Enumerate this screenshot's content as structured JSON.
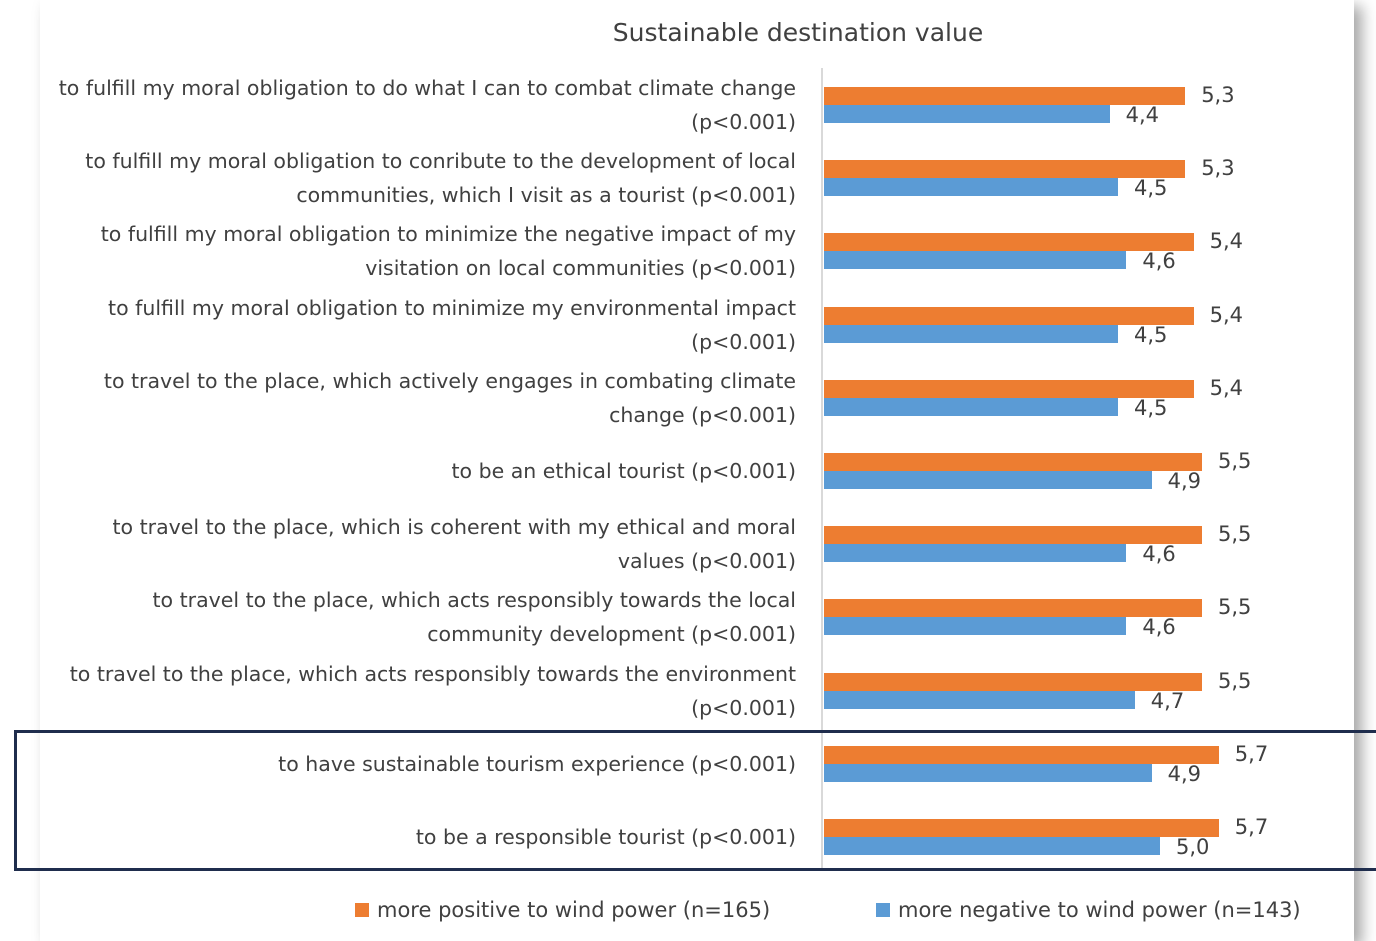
{
  "chart_data": {
    "type": "barh",
    "title": "Sustainable destination value",
    "categories": [
      "to fulfill my moral obligation to do what I can to combat climate change (p<0.001)",
      "to fulfill my moral obligation to conribute to the development of local communities, which I visit as a tourist (p<0.001)",
      "to fulfill my moral obligation to minimize the negative impact of my visitation on local communities  (p<0.001)",
      "to fulfill my moral obligation to minimize my environmental impact  (p<0.001)",
      "to travel to the place, which actively engages in combating climate change  (p<0.001)",
      "to be an ethical tourist  (p<0.001)",
      "to travel to the place, which is coherent with my ethical and moral values  (p<0.001)",
      "to travel to the place, which acts responsibly towards the local community development  (p<0.001)",
      "to travel to the place, which acts responsibly towards the environment (p<0.001)",
      "to have sustainable tourism experience (p<0.001)",
      "to be a responsible tourist (p<0.001)"
    ],
    "series": [
      {
        "name": "more positive to wind power (n=165)",
        "color": "#ed7d31",
        "values": [
          5.3,
          5.3,
          5.4,
          5.4,
          5.4,
          5.5,
          5.5,
          5.5,
          5.5,
          5.7,
          5.7
        ],
        "value_labels": [
          "5,3",
          "5,3",
          "5,4",
          "5,4",
          "5,4",
          "5,5",
          "5,5",
          "5,5",
          "5,5",
          "5,7",
          "5,7"
        ]
      },
      {
        "name": "more negative to wind power (n=143)",
        "color": "#5b9bd5",
        "values": [
          4.4,
          4.5,
          4.6,
          4.5,
          4.5,
          4.9,
          4.6,
          4.6,
          4.7,
          4.9,
          5.0
        ],
        "value_labels": [
          "4,4",
          "4,5",
          "4,6",
          "4,5",
          "4,5",
          "4,9",
          "4,6",
          "4,6",
          "4,7",
          "4,9",
          "5,0"
        ]
      }
    ],
    "xlim": [
      1,
      7
    ]
  }
}
